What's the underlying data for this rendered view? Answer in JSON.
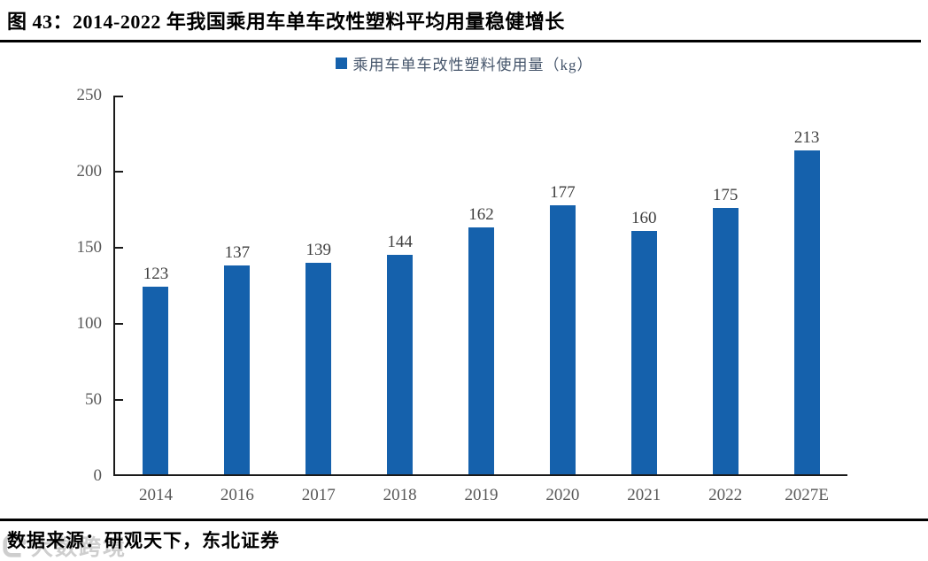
{
  "header": {
    "title": "图 43：2014-2022 年我国乘用车单车改性塑料平均用量稳健增长"
  },
  "legend": {
    "label": "乘用车单车改性塑料使用量（kg）"
  },
  "chart_data": {
    "type": "bar",
    "title": "2014-2022 年我国乘用车单车改性塑料平均用量稳健增长",
    "series_name": "乘用车单车改性塑料使用量（kg）",
    "categories": [
      "2014",
      "2016",
      "2017",
      "2018",
      "2019",
      "2020",
      "2021",
      "2022",
      "2027E"
    ],
    "values": [
      123,
      137,
      139,
      144,
      162,
      177,
      160,
      175,
      213
    ],
    "xlabel": "",
    "ylabel": "",
    "ylim": [
      0,
      250
    ],
    "yticks": [
      0,
      50,
      100,
      150,
      200,
      250
    ],
    "grid": false,
    "legend_position": "top-center",
    "bar_color": "#1561AC"
  },
  "footer": {
    "source_text": "数据来源：研观天下，东北证券"
  },
  "watermark": {
    "text": "大数跨境"
  },
  "colors": {
    "bar": "#1561AC",
    "legend_text": "#44546A",
    "axis_label": "#595959",
    "value_label": "#3F3F3F",
    "rule": "#000000",
    "watermark": "#C3C3C3"
  }
}
